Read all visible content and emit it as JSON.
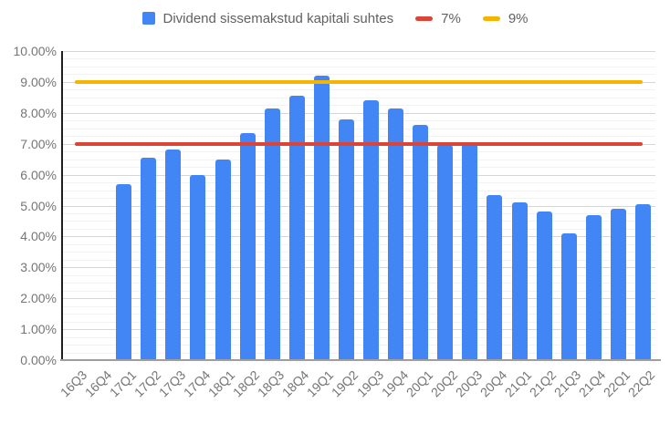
{
  "legend": {
    "series_label": "Dividend sissemakstud kapitali suhtes",
    "line7_label": "7%",
    "line9_label": "9%"
  },
  "colors": {
    "bar": "#4285F4",
    "line7": "#DB4437",
    "line9": "#F4B400",
    "axis_text": "#757575",
    "legend_text": "#616161",
    "major_grid": "#d6d6d6",
    "minor_grid": "#f2f2f2",
    "y_axis_line": "#1f1f1f",
    "baseline": "#9e9e9e"
  },
  "chart_data": {
    "type": "bar",
    "title": "",
    "xlabel": "",
    "ylabel": "",
    "ylim": [
      0,
      10
    ],
    "y_major_step": 1,
    "y_minor_step": 0.25,
    "grid": true,
    "legend_position": "top-center",
    "y_ticks": [
      "0.00%",
      "1.00%",
      "2.00%",
      "3.00%",
      "4.00%",
      "5.00%",
      "6.00%",
      "7.00%",
      "8.00%",
      "9.00%",
      "10.00%"
    ],
    "categories": [
      "16Q3",
      "16Q4",
      "17Q1",
      "17Q2",
      "17Q3",
      "17Q4",
      "18Q1",
      "18Q2",
      "18Q3",
      "18Q4",
      "19Q1",
      "19Q2",
      "19Q3",
      "19Q4",
      "20Q1",
      "20Q2",
      "20Q3",
      "20Q4",
      "21Q1",
      "21Q2",
      "21Q3",
      "21Q4",
      "22Q1",
      "22Q2"
    ],
    "series": [
      {
        "name": "Dividend sissemakstud kapitali suhtes",
        "type": "bar",
        "color": "#4285F4",
        "values": [
          null,
          null,
          5.7,
          6.55,
          6.8,
          6.0,
          6.5,
          7.35,
          8.15,
          8.55,
          9.2,
          7.8,
          8.4,
          8.15,
          7.6,
          6.95,
          7.0,
          5.35,
          5.1,
          4.8,
          4.1,
          4.7,
          4.9,
          5.05
        ]
      },
      {
        "name": "7%",
        "type": "hline",
        "color": "#DB4437",
        "value": 7
      },
      {
        "name": "9%",
        "type": "hline",
        "color": "#F4B400",
        "value": 9
      }
    ]
  }
}
